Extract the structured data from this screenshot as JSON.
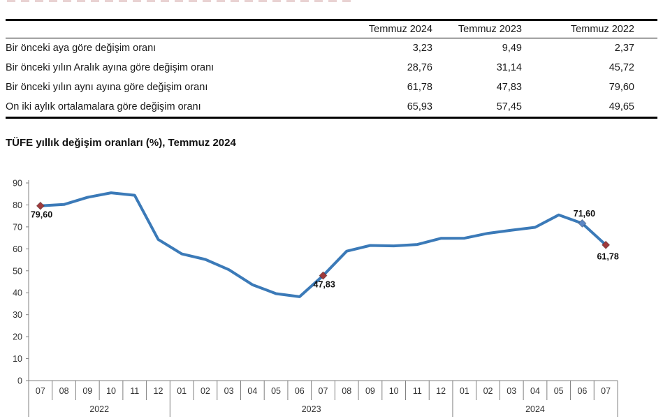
{
  "summary_table": {
    "columns": [
      "Temmuz 2024",
      "Temmuz 2023",
      "Temmuz 2022"
    ],
    "rows": [
      {
        "label": "Bir önceki aya göre değişim oranı",
        "values": [
          "3,23",
          "9,49",
          "2,37"
        ]
      },
      {
        "label": "Bir önceki yılın Aralık ayına göre değişim oranı",
        "values": [
          "28,76",
          "31,14",
          "45,72"
        ]
      },
      {
        "label": "Bir önceki yılın aynı ayına göre değişim oranı",
        "values": [
          "61,78",
          "47,83",
          "79,60"
        ]
      },
      {
        "label": "On iki aylık ortalamalara göre değişim oranı",
        "values": [
          "65,93",
          "57,45",
          "49,65"
        ]
      }
    ]
  },
  "chart_data": {
    "type": "line",
    "title": "TÜFE yıllık değişim oranları (%), Temmuz 2024",
    "x_months": [
      "07",
      "08",
      "09",
      "10",
      "11",
      "12",
      "01",
      "02",
      "03",
      "04",
      "05",
      "06",
      "07",
      "08",
      "09",
      "10",
      "11",
      "12",
      "01",
      "02",
      "03",
      "04",
      "05",
      "06",
      "07"
    ],
    "year_groups": [
      {
        "label": "2022",
        "start": 0,
        "count": 6
      },
      {
        "label": "2023",
        "start": 6,
        "count": 12
      },
      {
        "label": "2024",
        "start": 18,
        "count": 7
      }
    ],
    "values": [
      79.6,
      80.21,
      83.45,
      85.51,
      84.39,
      64.27,
      57.68,
      55.18,
      50.51,
      43.68,
      39.59,
      38.21,
      47.83,
      58.94,
      61.53,
      61.36,
      61.98,
      64.77,
      64.86,
      67.07,
      68.5,
      69.8,
      75.45,
      71.6,
      61.78
    ],
    "ylim": [
      0,
      90
    ],
    "ytick_step": 10,
    "grid": false,
    "legend": "none",
    "line_color": "#3b7ab8",
    "axis_color": "#808080",
    "annotations": [
      {
        "index": 0,
        "label": "79,60",
        "pos": "below-left",
        "marker_color": "#9e3a3c"
      },
      {
        "index": 12,
        "label": "47,83",
        "pos": "below-left",
        "marker_color": "#9e3a3c"
      },
      {
        "index": 23,
        "label": "71,60",
        "pos": "above",
        "marker_color": "#5b87c5"
      },
      {
        "index": 24,
        "label": "61,78",
        "pos": "below",
        "marker_color": "#9e3a3c"
      }
    ]
  }
}
